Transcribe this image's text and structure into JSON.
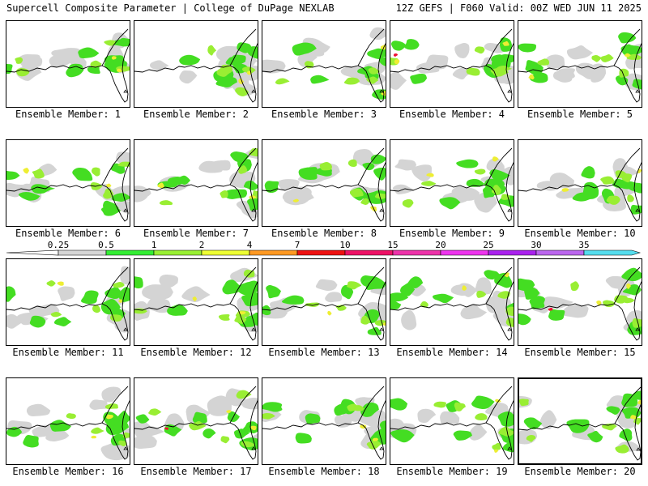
{
  "header": {
    "title": "Supercell Composite Parameter | College of DuPage NEXLAB",
    "run": "12Z GEFS | F060 Valid: 00Z WED JUN 11 2025"
  },
  "colorbar": {
    "labels": [
      "0.25",
      "0.5",
      "1",
      "2",
      "4",
      "7",
      "10",
      "15",
      "20",
      "25",
      "30",
      "35"
    ],
    "colors": [
      "#d6d6d6",
      "#33ee33",
      "#99f033",
      "#eeff33",
      "#ff9922",
      "#ee1111",
      "#ee1166",
      "#ee33aa",
      "#ee33ee",
      "#aa22ee",
      "#bb66ee",
      "#55ddee"
    ]
  },
  "legend_colors": {
    "light": "#d4d4d4",
    "green": "#44dd22",
    "lime": "#99ee33",
    "yellow": "#eeee33",
    "orange": "#ff9922",
    "red": "#ee1133"
  },
  "panels": [
    {
      "label": "Ensemble Member: 1",
      "highlighted": false
    },
    {
      "label": "Ensemble Member: 2",
      "highlighted": false
    },
    {
      "label": "Ensemble Member: 3",
      "highlighted": false
    },
    {
      "label": "Ensemble Member: 4",
      "highlighted": false
    },
    {
      "label": "Ensemble Member: 5",
      "highlighted": false
    },
    {
      "label": "Ensemble Member: 6",
      "highlighted": false
    },
    {
      "label": "Ensemble Member: 7",
      "highlighted": false
    },
    {
      "label": "Ensemble Member: 8",
      "highlighted": false
    },
    {
      "label": "Ensemble Member: 9",
      "highlighted": false
    },
    {
      "label": "Ensemble Member: 10",
      "highlighted": false
    },
    {
      "label": "Ensemble Member: 11",
      "highlighted": false
    },
    {
      "label": "Ensemble Member: 12",
      "highlighted": false
    },
    {
      "label": "Ensemble Member: 13",
      "highlighted": false
    },
    {
      "label": "Ensemble Member: 14",
      "highlighted": false
    },
    {
      "label": "Ensemble Member: 15",
      "highlighted": false
    },
    {
      "label": "Ensemble Member: 16",
      "highlighted": false
    },
    {
      "label": "Ensemble Member: 17",
      "highlighted": false
    },
    {
      "label": "Ensemble Member: 18",
      "highlighted": false
    },
    {
      "label": "Ensemble Member: 19",
      "highlighted": false
    },
    {
      "label": "Ensemble Member: 20",
      "highlighted": true
    }
  ]
}
